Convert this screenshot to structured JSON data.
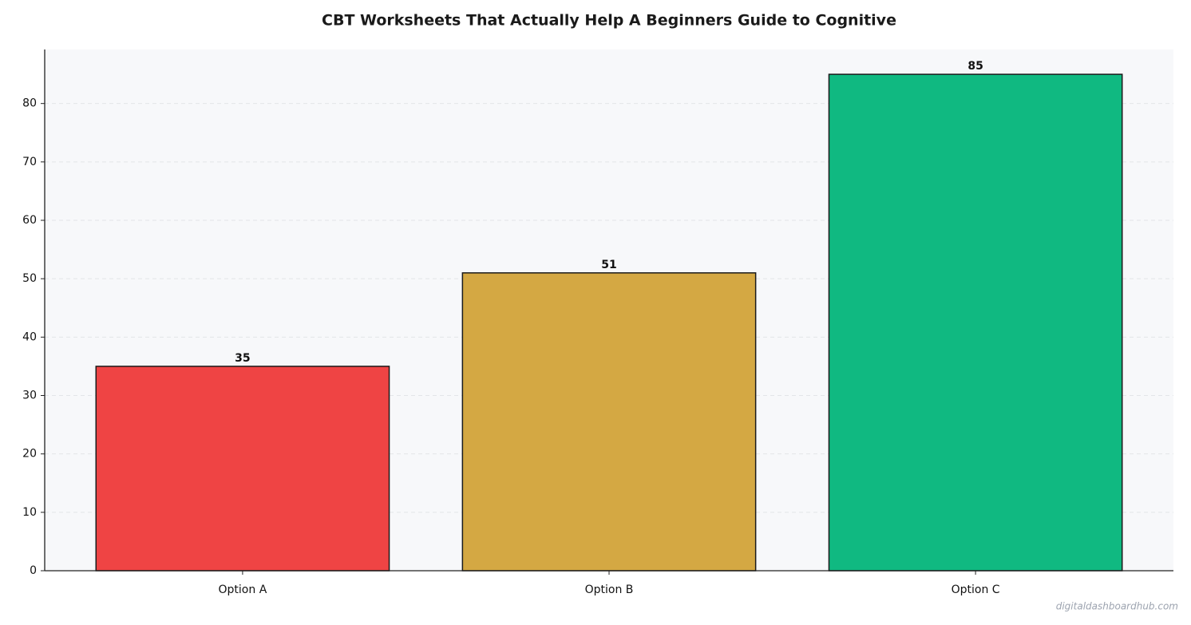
{
  "chart_data": {
    "type": "bar",
    "title": "CBT Worksheets That Actually Help  A Beginners Guide to Cognitive",
    "categories": [
      "Option A",
      "Option B",
      "Option C"
    ],
    "values": [
      35,
      51,
      85
    ],
    "colors": [
      "#ef4444",
      "#d4a843",
      "#10b981"
    ],
    "ylim": [
      0,
      89.25
    ],
    "yticks": [
      0,
      10,
      20,
      30,
      40,
      50,
      60,
      70,
      80
    ],
    "grid": true,
    "watermark": "digitaldashboardhub.com"
  }
}
